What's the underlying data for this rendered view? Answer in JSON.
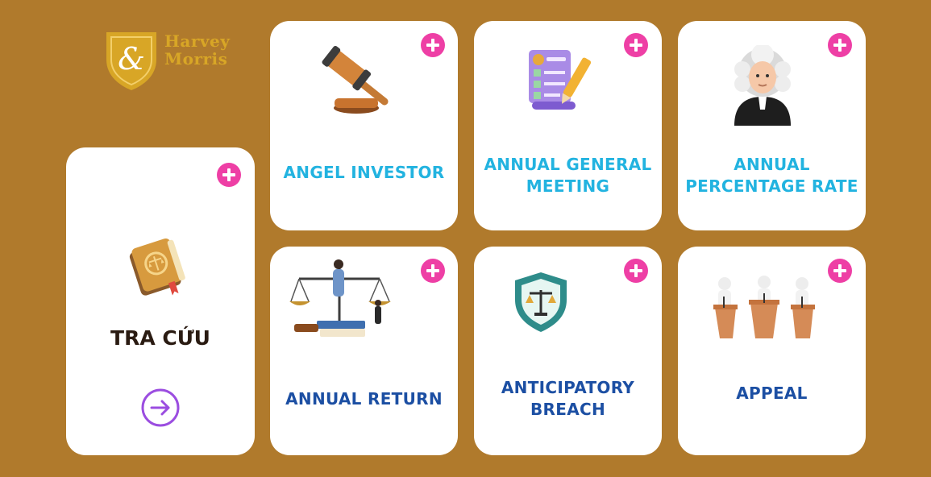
{
  "brand": {
    "logo_symbol": "&",
    "name_line1": "Harvey",
    "name_line2": "Morris",
    "color": "#D8A626"
  },
  "colors": {
    "background": "#B07A2C",
    "card": "#FFFFFF",
    "plus": "#EE3FA5",
    "cyan_label": "#22B3E0",
    "navy_label": "#1C4FA3",
    "arrow": "#9B4DE0"
  },
  "lookup_card": {
    "title": "TRA CỨU",
    "icon": "law-book-icon",
    "action_icon": "arrow-right-circle-icon"
  },
  "terms": [
    {
      "label": "ANGEL INVESTOR",
      "icon": "gavel-icon"
    },
    {
      "label": "ANNUAL GENERAL MEETING",
      "label_line1": "ANNUAL GENERAL",
      "label_line2": "MEETING",
      "icon": "document-checklist-icon"
    },
    {
      "label": "ANNUAL PERCENTAGE RATE",
      "label_line1": "ANNUAL",
      "label_line2": "PERCENTAGE RATE",
      "icon": "judge-icon"
    },
    {
      "label": "ANNUAL RETURN",
      "icon": "scales-of-justice-icon"
    },
    {
      "label": "ANTICIPATORY BREACH",
      "label_line1": "ANTICIPATORY",
      "label_line2": "BREACH",
      "icon": "shield-scales-icon"
    },
    {
      "label": "APPEAL",
      "icon": "courtroom-debate-icon"
    }
  ]
}
